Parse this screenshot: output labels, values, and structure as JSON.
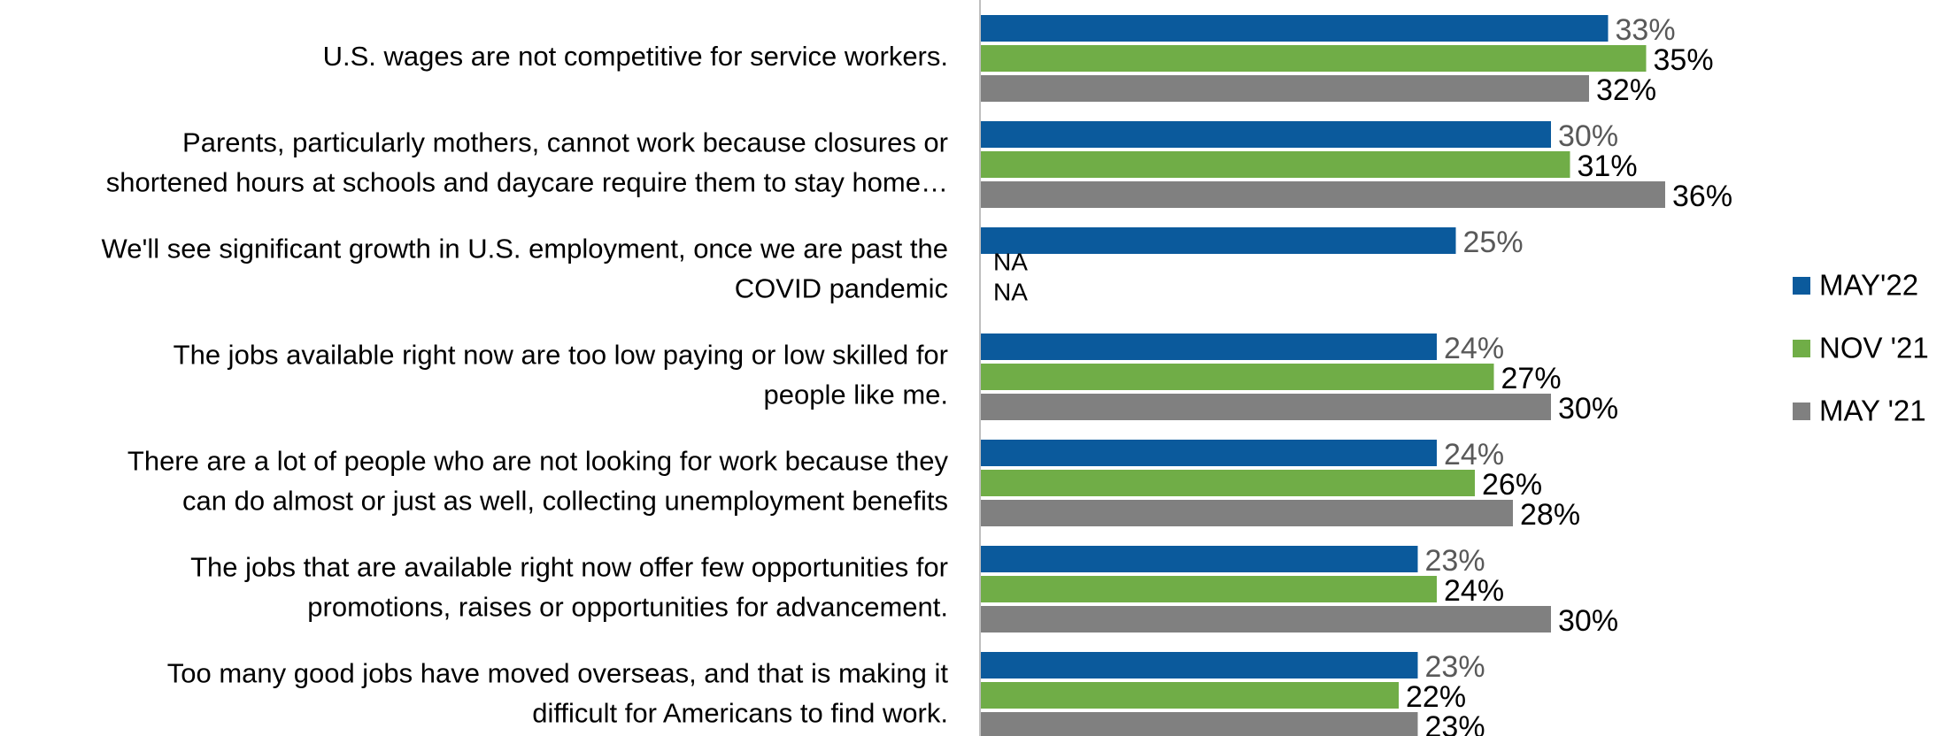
{
  "chart_data": {
    "type": "bar",
    "orientation": "horizontal",
    "categories": [
      [
        "U.S. wages are not competitive for service workers."
      ],
      [
        "Parents, particularly mothers, cannot work because closures or",
        "shortened hours at schools and daycare require them to stay home…"
      ],
      [
        "We'll see significant growth in U.S. employment, once we are past the",
        "COVID pandemic"
      ],
      [
        "The jobs available right now are too low paying or low skilled for",
        "people like me."
      ],
      [
        "There are a lot of people who are not looking for work because they",
        "can do almost or just as well, collecting unemployment benefits"
      ],
      [
        "The jobs that are available right now offer few opportunities for",
        "promotions, raises or opportunities for advancement."
      ],
      [
        "Too many good jobs have moved overseas, and that is making it",
        "difficult for Americans to find work."
      ]
    ],
    "series": [
      {
        "name": "MAY'22",
        "color": "#0b5a9c",
        "label_color": "#595959",
        "values": [
          33,
          30,
          25,
          24,
          24,
          23,
          23
        ],
        "value_labels": [
          "33%",
          "30%",
          "25%",
          "24%",
          "24%",
          "23%",
          "23%"
        ]
      },
      {
        "name": "NOV '21",
        "color": "#70ad47",
        "label_color": "#000000",
        "values": [
          35,
          31,
          null,
          27,
          26,
          24,
          22
        ],
        "value_labels": [
          "35%",
          "31%",
          "NA",
          "27%",
          "26%",
          "24%",
          "22%"
        ]
      },
      {
        "name": "MAY '21",
        "color": "#808080",
        "label_color": "#000000",
        "values": [
          32,
          36,
          null,
          30,
          28,
          30,
          23
        ],
        "value_labels": [
          "32%",
          "36%",
          "NA",
          "30%",
          "28%",
          "30%",
          "23%"
        ]
      }
    ],
    "xlim": [
      0,
      40
    ],
    "legend": "right"
  }
}
